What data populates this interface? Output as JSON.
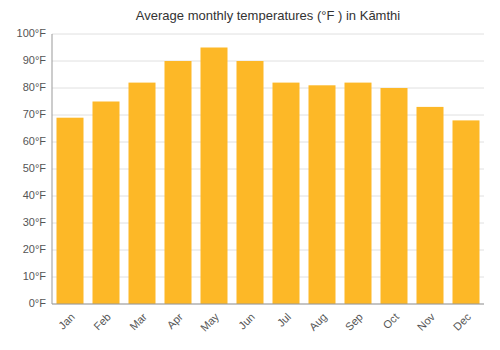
{
  "chart_data": {
    "type": "bar",
    "title": "Average monthly temperatures (°F ) in Kāmthi",
    "categories": [
      "Jan",
      "Feb",
      "Mar",
      "Apr",
      "May",
      "Jun",
      "Jul",
      "Aug",
      "Sep",
      "Oct",
      "Nov",
      "Dec"
    ],
    "values": [
      69,
      75,
      82,
      90,
      95,
      90,
      82,
      81,
      82,
      80,
      73,
      68
    ],
    "color": "#FDB827",
    "ylim": [
      0,
      100
    ],
    "yticks": [
      {
        "value": 0,
        "label": "0°F"
      },
      {
        "value": 10,
        "label": "10°F"
      },
      {
        "value": 20,
        "label": "20°F"
      },
      {
        "value": 30,
        "label": "30°F"
      },
      {
        "value": 40,
        "label": "40°F"
      },
      {
        "value": 50,
        "label": "50°F"
      },
      {
        "value": 60,
        "label": "60°F"
      },
      {
        "value": 70,
        "label": "70°F"
      },
      {
        "value": 80,
        "label": "80°F"
      },
      {
        "value": 90,
        "label": "90°F"
      },
      {
        "value": 100,
        "label": "100°F"
      }
    ],
    "grid": true
  }
}
